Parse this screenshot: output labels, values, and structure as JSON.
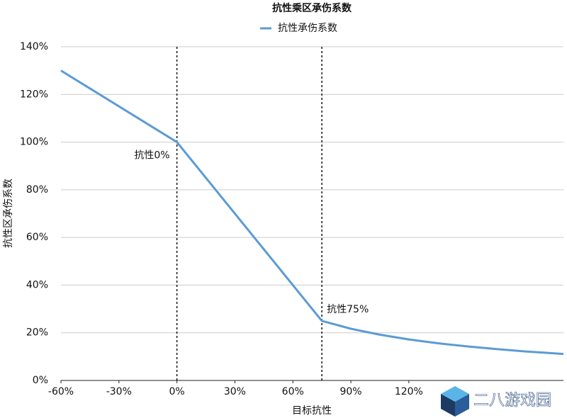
{
  "chart_data": {
    "type": "line",
    "title": "抗性乘区承伤系数",
    "x_label": "目标抗性",
    "y_label": "抗性区承伤系数",
    "x": [
      -60,
      0,
      75,
      90,
      105,
      120,
      135,
      150,
      165,
      180,
      200
    ],
    "series": [
      {
        "name": "抗性承伤系数",
        "color": "#5b9bd5",
        "values": [
          130,
          100,
          25,
          21.7,
          19.2,
          17.2,
          15.6,
          14.3,
          13.2,
          12.2,
          11.1
        ]
      }
    ],
    "xlim": [
      -60,
      200
    ],
    "ylim": [
      0,
      140
    ],
    "xticks": [
      {
        "value": -60,
        "label": "-60%"
      },
      {
        "value": -30,
        "label": "-30%"
      },
      {
        "value": 0,
        "label": "0%"
      },
      {
        "value": 30,
        "label": "30%"
      },
      {
        "value": 60,
        "label": "60%"
      },
      {
        "value": 90,
        "label": "90%"
      },
      {
        "value": 120,
        "label": "120%"
      }
    ],
    "yticks": [
      {
        "value": 0,
        "label": "0%"
      },
      {
        "value": 20,
        "label": "20%"
      },
      {
        "value": 40,
        "label": "40%"
      },
      {
        "value": 60,
        "label": "60%"
      },
      {
        "value": 80,
        "label": "80%"
      },
      {
        "value": 100,
        "label": "100%"
      },
      {
        "value": 120,
        "label": "120%"
      },
      {
        "value": 140,
        "label": "140%"
      }
    ],
    "grid": true,
    "vlines": [
      0,
      75
    ],
    "annotations": [
      {
        "text": "抗性0%",
        "x": 0,
        "y": 100,
        "side": "left"
      },
      {
        "text": "抗性75%",
        "x": 75,
        "y": 25,
        "side": "right"
      }
    ]
  },
  "watermark": "二八游戏园"
}
